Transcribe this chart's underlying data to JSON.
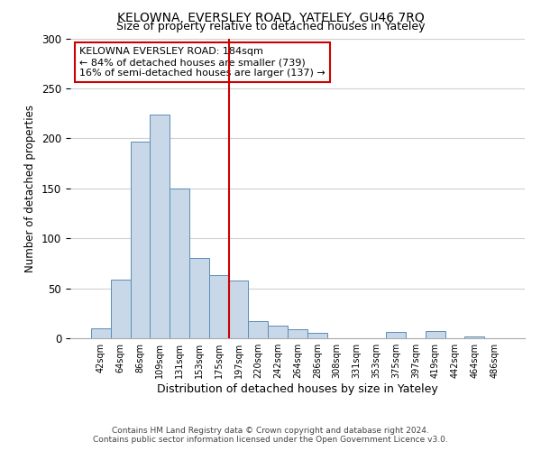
{
  "title": "KELOWNA, EVERSLEY ROAD, YATELEY, GU46 7RQ",
  "subtitle": "Size of property relative to detached houses in Yateley",
  "xlabel": "Distribution of detached houses by size in Yateley",
  "ylabel": "Number of detached properties",
  "bin_labels": [
    "42sqm",
    "64sqm",
    "86sqm",
    "109sqm",
    "131sqm",
    "153sqm",
    "175sqm",
    "197sqm",
    "220sqm",
    "242sqm",
    "264sqm",
    "286sqm",
    "308sqm",
    "331sqm",
    "353sqm",
    "375sqm",
    "397sqm",
    "419sqm",
    "442sqm",
    "464sqm",
    "486sqm"
  ],
  "bar_heights": [
    10,
    59,
    197,
    224,
    150,
    80,
    63,
    58,
    17,
    13,
    9,
    5,
    0,
    0,
    0,
    6,
    0,
    7,
    0,
    2,
    0
  ],
  "bar_color": "#c8d8e8",
  "bar_edge_color": "#5b8db8",
  "vline_x": 6.5,
  "vline_color": "#cc0000",
  "annotation_title": "KELOWNA EVERSLEY ROAD: 184sqm",
  "annotation_line1": "← 84% of detached houses are smaller (739)",
  "annotation_line2": "16% of semi-detached houses are larger (137) →",
  "annotation_box_color": "#ffffff",
  "annotation_box_edge": "#cc0000",
  "ylim": [
    0,
    300
  ],
  "yticks": [
    0,
    50,
    100,
    150,
    200,
    250,
    300
  ],
  "footer1": "Contains HM Land Registry data © Crown copyright and database right 2024.",
  "footer2": "Contains public sector information licensed under the Open Government Licence v3.0.",
  "background_color": "#ffffff",
  "grid_color": "#d0d0d0"
}
